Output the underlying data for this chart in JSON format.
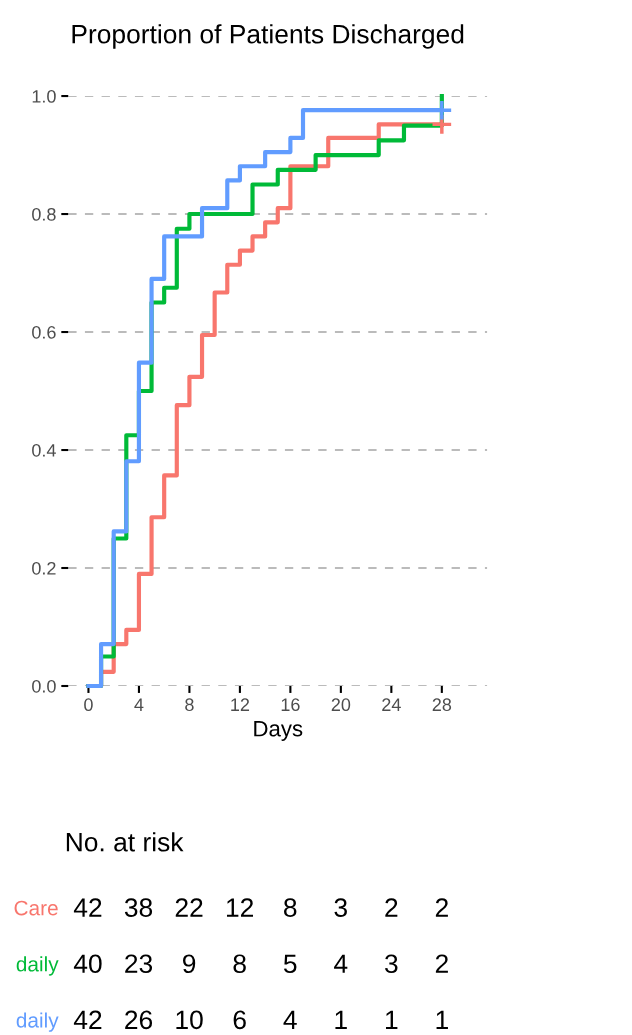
{
  "chart_data": [
    {
      "type": "step",
      "title": "Proportion of Patients Discharged",
      "xlabel": "Days",
      "series": [
        {
          "color": "#f8766d",
          "x": [
            0,
            1,
            2,
            3,
            4,
            5,
            6,
            7,
            8,
            9,
            10,
            11,
            12,
            13,
            14,
            15,
            16,
            19,
            23,
            28
          ],
          "values": [
            0,
            0.024,
            0.071,
            0.095,
            0.19,
            0.286,
            0.357,
            0.476,
            0.524,
            0.595,
            0.667,
            0.714,
            0.738,
            0.762,
            0.786,
            0.81,
            0.881,
            0.929,
            0.952,
            0.952
          ]
        },
        {
          "color": "#00ba38",
          "x": [
            0,
            1,
            2,
            3,
            4,
            5,
            6,
            7,
            8,
            13,
            15,
            18,
            23,
            25,
            28
          ],
          "values": [
            0,
            0.05,
            0.25,
            0.425,
            0.5,
            0.65,
            0.675,
            0.775,
            0.8,
            0.85,
            0.875,
            0.9,
            0.925,
            0.95,
            1.0
          ]
        },
        {
          "color": "#619cff",
          "x": [
            0,
            1,
            2,
            3,
            4,
            5,
            6,
            9,
            11,
            12,
            14,
            16,
            17,
            28
          ],
          "values": [
            0,
            0.071,
            0.262,
            0.381,
            0.548,
            0.69,
            0.762,
            0.81,
            0.857,
            0.881,
            0.905,
            0.929,
            0.976,
            0.976
          ]
        },
        {
          "type": "scatter",
          "marker": "cross",
          "color": "#f8766d",
          "x": [
            28
          ],
          "values": [
            0.952
          ]
        },
        {
          "type": "scatter",
          "marker": "cross",
          "color": "#619cff",
          "x": [
            28
          ],
          "values": [
            0.976
          ]
        }
      ],
      "xlim": [
        -1.6,
        31.6
      ],
      "xticks": [
        0,
        4,
        8,
        12,
        16,
        20,
        24,
        28
      ],
      "ylim": [
        0,
        1
      ],
      "yticks": [
        {
          "value": 0,
          "label": "0.0"
        },
        {
          "value": 0.2,
          "label": "0.2"
        },
        {
          "value": 0.4,
          "label": "0.4"
        },
        {
          "value": 0.6,
          "label": "0.6"
        },
        {
          "value": 0.8,
          "label": "0.8"
        },
        {
          "value": 1,
          "label": "1.0"
        }
      ],
      "grid": "y",
      "legend": false
    },
    {
      "type": "heatmap",
      "title": "No. at risk",
      "categories": [
        null,
        null,
        null,
        null,
        null,
        null,
        null,
        null
      ],
      "y_categories": [
        "Care",
        "daily",
        "daily"
      ],
      "data_labels": true,
      "colors": [
        "#f8766d",
        "#00ba38",
        "#619cff"
      ],
      "cells": [
        [
          42,
          38,
          22,
          12,
          8,
          3,
          2,
          2
        ],
        [
          40,
          23,
          9,
          8,
          5,
          4,
          3,
          2
        ],
        [
          42,
          26,
          10,
          6,
          4,
          1,
          1,
          1
        ]
      ]
    }
  ]
}
